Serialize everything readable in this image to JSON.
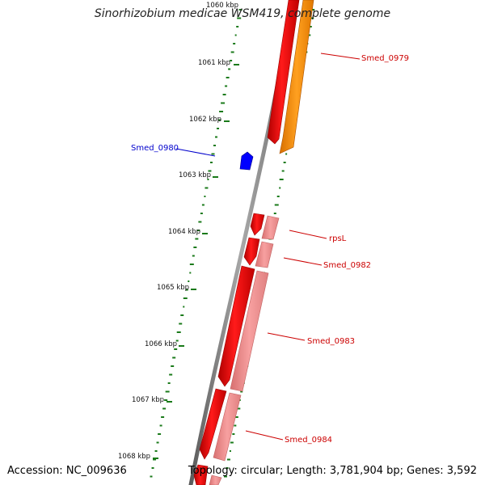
{
  "title": "Sinorhizobium medicae WSM419, complete genome",
  "footer": {
    "accession": "Accession: NC_009636",
    "stats": "Topology: circular; Length: 3,781,904 bp; Genes: 3,592"
  },
  "scale_labels": [
    "1060 kbp",
    "1061 kbp",
    "1062 kbp",
    "1063 kbp",
    "1064 kbp",
    "1065 kbp",
    "1066 kbp",
    "1067 kbp",
    "1068 kbp"
  ],
  "gene_labels": {
    "smed_0979": "Smed_0979",
    "smed_0980": "Smed_0980",
    "rpsL": "rpsL",
    "smed_0982": "Smed_0982",
    "smed_0983": "Smed_0983",
    "smed_0984": "Smed_0984"
  },
  "colors": {
    "backbone": "#808080",
    "forward_cds": "#ff0000",
    "forward_gene_light": "#f08080",
    "orange_gene": "#ff8c00",
    "reverse_cds": "#0000ff",
    "gc_ticks": "#1a7a1a",
    "label_red": "#cc0000",
    "label_blue": "#0000cc"
  }
}
